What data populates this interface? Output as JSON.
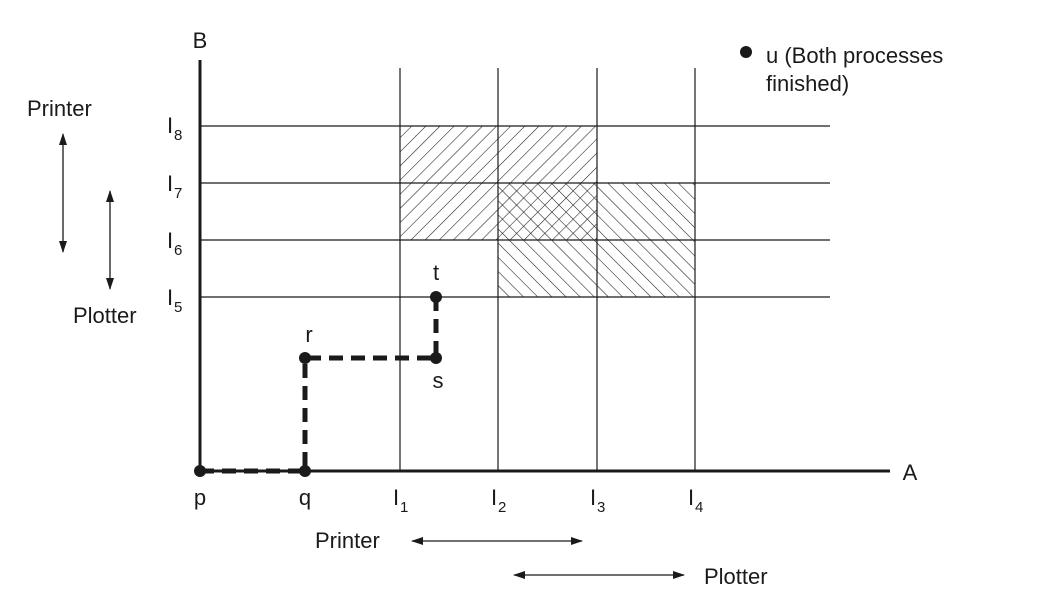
{
  "axes": {
    "x_label": "A",
    "y_label": "B"
  },
  "x_ticks": [
    {
      "main": "I",
      "sub": "1"
    },
    {
      "main": "I",
      "sub": "2"
    },
    {
      "main": "I",
      "sub": "3"
    },
    {
      "main": "I",
      "sub": "4"
    }
  ],
  "y_ticks": [
    {
      "main": "I",
      "sub": "5"
    },
    {
      "main": "I",
      "sub": "6"
    },
    {
      "main": "I",
      "sub": "7"
    },
    {
      "main": "I",
      "sub": "8"
    }
  ],
  "points": {
    "p": "p",
    "q": "q",
    "r": "r",
    "s": "s",
    "t": "t"
  },
  "legend": {
    "line1": "u (Both processes",
    "line2": "finished)"
  },
  "x_ranges": {
    "printer": "Printer",
    "plotter": "Plotter"
  },
  "y_ranges": {
    "printer": "Printer",
    "plotter": "Plotter"
  }
}
